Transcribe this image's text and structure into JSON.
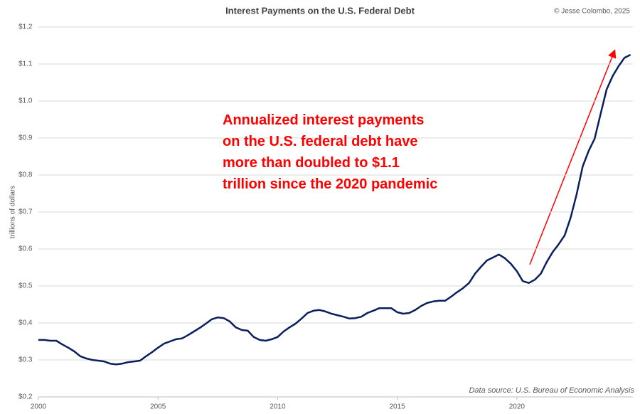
{
  "chart_data": {
    "type": "line",
    "title": "Interest Payments on the U.S. Federal Debt",
    "credit": "© Jesse Colombo, 2025",
    "y_label": "trillions of dollars",
    "source": "Data source: U.S. Bureau of Economic Analysis",
    "annotation": [
      "Annualized interest payments",
      "on the U.S. federal debt have",
      "more than doubled to $1.1",
      "trillion since the 2020 pandemic"
    ],
    "color": "#0b1f5c",
    "annotation_color": "#ff0000",
    "grid": true,
    "xlim": [
      2000,
      2024.85
    ],
    "xticks": [
      2000,
      2005,
      2010,
      2015,
      2020
    ],
    "ylim": [
      0.2,
      1.2
    ],
    "yticks": [
      {
        "value": 0.2,
        "label": "$0.2"
      },
      {
        "value": 0.3,
        "label": "$0.3"
      },
      {
        "value": 0.4,
        "label": "$0.4"
      },
      {
        "value": 0.5,
        "label": "$0.5"
      },
      {
        "value": 0.6,
        "label": "$0.6"
      },
      {
        "value": 0.7,
        "label": "$0.7"
      },
      {
        "value": 0.8,
        "label": "$0.8"
      },
      {
        "value": 0.9,
        "label": "$0.9"
      },
      {
        "value": 1.0,
        "label": "$1.0"
      },
      {
        "value": 1.1,
        "label": "$1.1"
      },
      {
        "value": 1.2,
        "label": "$1.2"
      }
    ],
    "x": [
      2000,
      2000.25,
      2000.5,
      2000.75,
      2001,
      2001.25,
      2001.5,
      2001.75,
      2002,
      2002.25,
      2002.5,
      2002.75,
      2003,
      2003.25,
      2003.5,
      2003.75,
      2004,
      2004.25,
      2004.5,
      2004.75,
      2005,
      2005.25,
      2005.5,
      2005.75,
      2006,
      2006.25,
      2006.5,
      2006.75,
      2007,
      2007.25,
      2007.5,
      2007.75,
      2008,
      2008.25,
      2008.5,
      2008.75,
      2009,
      2009.25,
      2009.5,
      2009.75,
      2010,
      2010.25,
      2010.5,
      2010.75,
      2011,
      2011.25,
      2011.5,
      2011.75,
      2012,
      2012.25,
      2012.5,
      2012.75,
      2013,
      2013.25,
      2013.5,
      2013.75,
      2014,
      2014.25,
      2014.5,
      2014.75,
      2015,
      2015.25,
      2015.5,
      2015.75,
      2016,
      2016.25,
      2016.5,
      2016.75,
      2017,
      2017.25,
      2017.5,
      2017.75,
      2018,
      2018.25,
      2018.5,
      2018.75,
      2019,
      2019.25,
      2019.5,
      2019.75,
      2020,
      2020.25,
      2020.5,
      2020.75,
      2021,
      2021.25,
      2021.5,
      2021.75,
      2022,
      2022.25,
      2022.5,
      2022.75,
      2023,
      2023.25,
      2023.5,
      2023.75,
      2024,
      2024.25,
      2024.5,
      2024.75
    ],
    "values": [
      0.354,
      0.354,
      0.352,
      0.352,
      0.342,
      0.333,
      0.323,
      0.31,
      0.304,
      0.3,
      0.298,
      0.296,
      0.29,
      0.288,
      0.29,
      0.294,
      0.296,
      0.298,
      0.31,
      0.321,
      0.333,
      0.344,
      0.35,
      0.356,
      0.358,
      0.367,
      0.377,
      0.387,
      0.398,
      0.41,
      0.415,
      0.413,
      0.404,
      0.388,
      0.381,
      0.379,
      0.362,
      0.354,
      0.352,
      0.356,
      0.362,
      0.377,
      0.388,
      0.398,
      0.412,
      0.427,
      0.433,
      0.435,
      0.431,
      0.425,
      0.421,
      0.417,
      0.412,
      0.413,
      0.417,
      0.427,
      0.433,
      0.44,
      0.44,
      0.44,
      0.429,
      0.425,
      0.427,
      0.435,
      0.446,
      0.454,
      0.458,
      0.46,
      0.46,
      0.471,
      0.483,
      0.494,
      0.508,
      0.533,
      0.552,
      0.569,
      0.577,
      0.585,
      0.575,
      0.56,
      0.54,
      0.513,
      0.508,
      0.517,
      0.533,
      0.565,
      0.592,
      0.613,
      0.637,
      0.685,
      0.748,
      0.823,
      0.865,
      0.898,
      0.965,
      1.031,
      1.067,
      1.094,
      1.117,
      1.125
    ]
  }
}
